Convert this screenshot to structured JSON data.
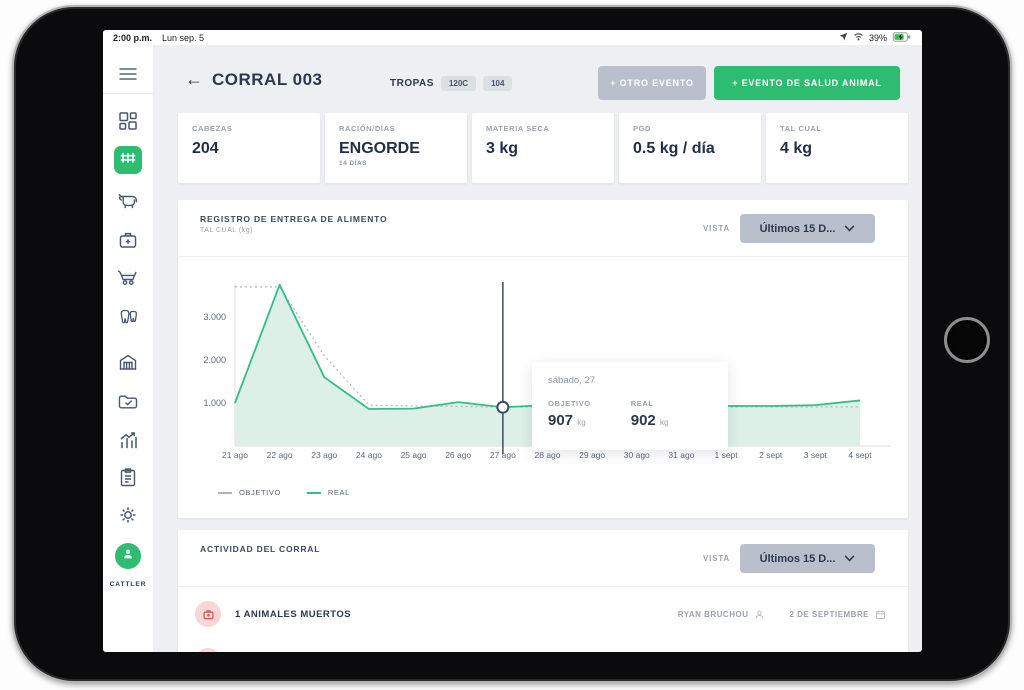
{
  "status_bar": {
    "time": "2:00 p.m.",
    "date": "Lun sep. 5",
    "battery_percent": "39%"
  },
  "sidebar": {
    "brand": "CATTLER",
    "items": [
      {
        "icon": "menu"
      },
      {
        "icon": "dashboard"
      },
      {
        "icon": "corral",
        "active": true
      },
      {
        "icon": "cow"
      },
      {
        "icon": "medkit"
      },
      {
        "icon": "feed-wagon"
      },
      {
        "icon": "teeth"
      },
      {
        "icon": "barn"
      },
      {
        "icon": "folder-check"
      },
      {
        "icon": "stats"
      },
      {
        "icon": "clipboard"
      },
      {
        "icon": "settings-gear"
      },
      {
        "icon": "user-avatar"
      }
    ]
  },
  "header": {
    "back_arrow": "←",
    "title": "CORRAL 003",
    "tropas_label": "TROPAS",
    "tropa_badges": [
      "120C",
      "104"
    ],
    "other_event_button": "+ OTRO EVENTO",
    "health_event_button": "+ EVENTO DE SALUD ANIMAL"
  },
  "stats": {
    "cards": [
      {
        "label": "CABEZAS",
        "value": "204"
      },
      {
        "label": "RACIÓN/DÍAS",
        "value": "ENGORDE",
        "sub": "14 DÍAS"
      },
      {
        "label": "MATERIA SECA",
        "value": "3 kg"
      },
      {
        "label": "PGD",
        "value": "0.5 kg / día"
      },
      {
        "label": "TAL CUAL",
        "value": "4 kg"
      }
    ]
  },
  "feed_panel": {
    "title": "REGISTRO DE ENTREGA DE ALIMENTO",
    "subtitle": "TAL CUAL (kg)",
    "vista_label": "VISTA",
    "vista_value": "Últimos 15 D...",
    "tooltip": {
      "date": "sábado, 27",
      "objetivo_label": "OBJETIVO",
      "objetivo_value": "907",
      "objetivo_unit": "kg",
      "real_label": "REAL",
      "real_value": "902",
      "real_unit": "kg"
    }
  },
  "chart_data": {
    "type": "line",
    "title": "REGISTRO DE ENTREGA DE ALIMENTO",
    "ylabel": "TAL CUAL (kg)",
    "categories": [
      "21 ago",
      "22 ago",
      "23 ago",
      "24 ago",
      "25 ago",
      "26 ago",
      "27 ago",
      "28 ago",
      "29 ago",
      "30 ago",
      "31 ago",
      "1 sept",
      "2 sept",
      "3 sept",
      "4 sept"
    ],
    "yticks": [
      {
        "value": 1000,
        "label": "1.000"
      },
      {
        "value": 2000,
        "label": "2.000"
      },
      {
        "value": 3000,
        "label": "3.000"
      }
    ],
    "ylim": [
      0,
      4000
    ],
    "grid": false,
    "legend_position": "bottom-left",
    "highlight_index": 6,
    "series": [
      {
        "name": "OBJETIVO",
        "color": "#aeb5bf",
        "dashed": true,
        "values": [
          3700,
          3700,
          2100,
          950,
          930,
          920,
          907,
          910,
          910,
          910,
          910,
          910,
          910,
          910,
          910
        ]
      },
      {
        "name": "REAL",
        "color": "#36bd86",
        "dashed": false,
        "fill": "#dcf0e8",
        "values": [
          1000,
          3750,
          1600,
          860,
          870,
          1020,
          902,
          950,
          940,
          930,
          940,
          930,
          930,
          950,
          1060
        ]
      }
    ]
  },
  "activity_panel": {
    "title": "ACTIVIDAD DEL CORRAL",
    "vista_label": "VISTA",
    "vista_value": "Últimos 15 D...",
    "rows": [
      {
        "text": "1 ANIMALES MUERTOS",
        "user": "RYAN BRUCHOU",
        "date": "2 DE SEPTIEMBRE"
      }
    ]
  },
  "colors": {
    "accent_green": "#2ebd70",
    "muted_button": "#b9c0cc",
    "navy_text": "#2c3850",
    "chart_real": "#36bd86",
    "chart_objetivo": "#aeb5bf",
    "chart_fill": "#dcf0e8",
    "alert_red": "#d9534f"
  }
}
